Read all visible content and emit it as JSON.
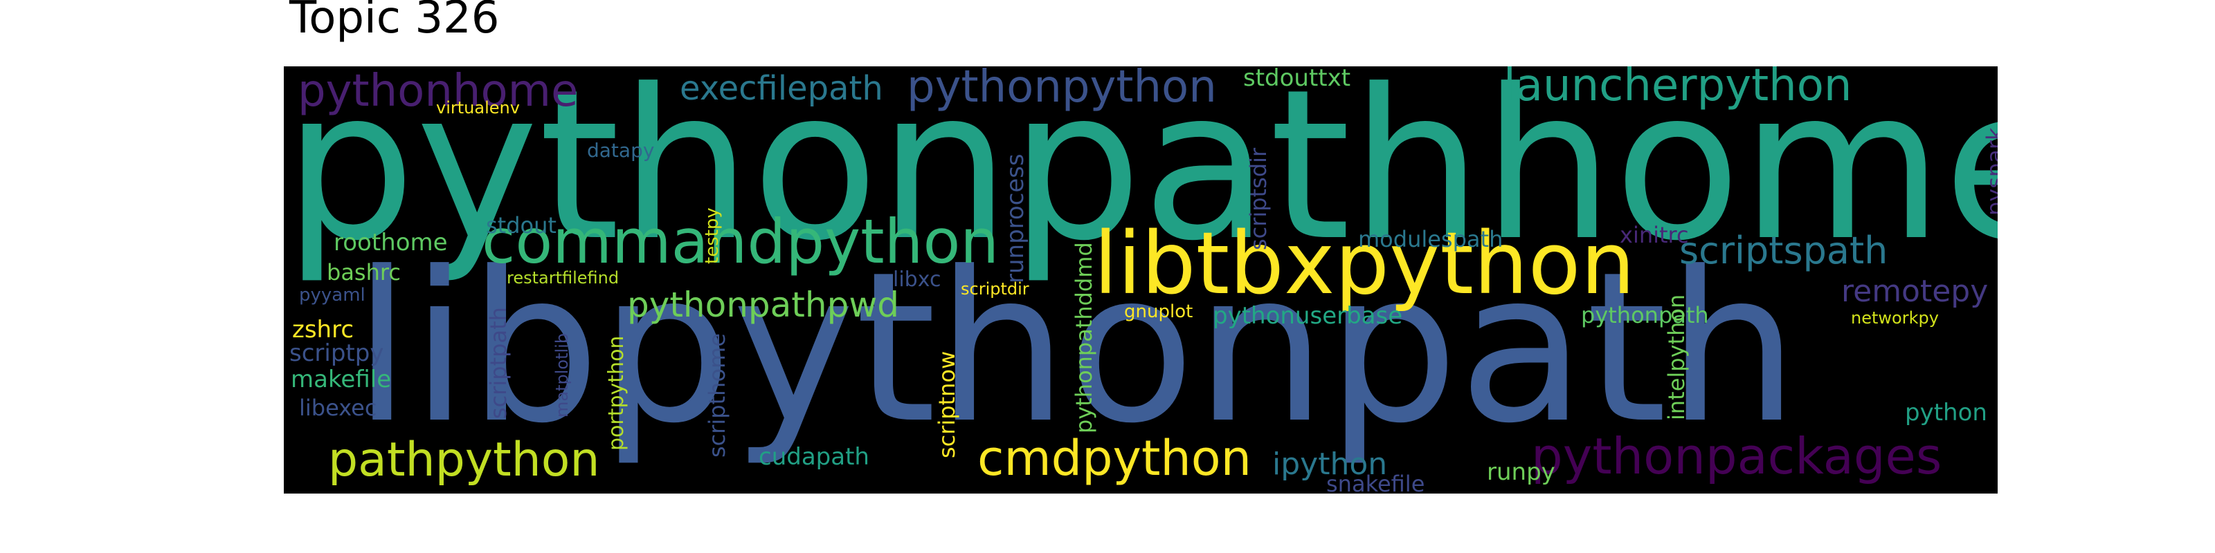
{
  "title": "Topic 326",
  "palette": {
    "background": "#000000",
    "teal": "#21a085",
    "blue": "#3e5e96",
    "yellow": "#fde725",
    "lime": "#b5de2b",
    "green": "#5ec962",
    "purple": "#440154",
    "indigo": "#3b528b",
    "cyan": "#26828e"
  },
  "words": [
    {
      "text": "pythonpathhome",
      "color": "#21a085"
    },
    {
      "text": "libpythonpath",
      "color": "#3e5e96"
    },
    {
      "text": "libtbxpython",
      "color": "#fde725"
    },
    {
      "text": "commandpython",
      "color": "#35b779"
    },
    {
      "text": "pythonpython",
      "color": "#3b528b"
    },
    {
      "text": "launcherpython",
      "color": "#21a085"
    },
    {
      "text": "execfilepath",
      "color": "#2a788e"
    },
    {
      "text": "pythonhome",
      "color": "#481f70"
    },
    {
      "text": "pythonpackages",
      "color": "#440154"
    },
    {
      "text": "cmdpython",
      "color": "#fde725"
    },
    {
      "text": "pathpython",
      "color": "#c2df23"
    },
    {
      "text": "scriptspath",
      "color": "#2a788e"
    },
    {
      "text": "pythonpathpwd",
      "color": "#6ece58"
    },
    {
      "text": "remotepy",
      "color": "#443983"
    },
    {
      "text": "stdouttxt",
      "color": "#5ec962"
    },
    {
      "text": "virtualenv",
      "color": "#fde725"
    },
    {
      "text": "datapy",
      "color": "#31688e"
    },
    {
      "text": "testpy",
      "color": "#d2e21b"
    },
    {
      "text": "runprocess",
      "color": "#3b528b"
    },
    {
      "text": "scriptsdir",
      "color": "#3e4989"
    },
    {
      "text": "pyspark",
      "color": "#472d7b"
    },
    {
      "text": "roothome",
      "color": "#5ec962"
    },
    {
      "text": "stdout",
      "color": "#2a788e"
    },
    {
      "text": "modulespath",
      "color": "#2a788e"
    },
    {
      "text": "xinitrc",
      "color": "#482878"
    },
    {
      "text": "bashrc",
      "color": "#6ece58"
    },
    {
      "text": "restartfilefind",
      "color": "#b5de2b"
    },
    {
      "text": "libxc",
      "color": "#3b528b"
    },
    {
      "text": "scriptdir",
      "color": "#fde725"
    },
    {
      "text": "pythonpathddmd",
      "color": "#6ece58"
    },
    {
      "text": "gnuplot",
      "color": "#fde725"
    },
    {
      "text": "pythonuserbase",
      "color": "#22a884"
    },
    {
      "text": "pythonpath",
      "color": "#5ec962"
    },
    {
      "text": "networkpy",
      "color": "#d2e21b"
    },
    {
      "text": "pyyaml",
      "color": "#3b528b"
    },
    {
      "text": "zshrc",
      "color": "#fde725"
    },
    {
      "text": "scriptpy",
      "color": "#3b528b"
    },
    {
      "text": "scriptpath",
      "color": "#3e4989"
    },
    {
      "text": "makefile",
      "color": "#35b779"
    },
    {
      "text": "matplotlib",
      "color": "#3e4989"
    },
    {
      "text": "portpython",
      "color": "#b5de2b"
    },
    {
      "text": "scripthome",
      "color": "#3b528b"
    },
    {
      "text": "scriptnow",
      "color": "#fde725"
    },
    {
      "text": "intelpython",
      "color": "#6ece58"
    },
    {
      "text": "libexec",
      "color": "#3b528b"
    },
    {
      "text": "python",
      "color": "#21a085"
    },
    {
      "text": "cudapath",
      "color": "#21a085"
    },
    {
      "text": "ipython",
      "color": "#2a788e"
    },
    {
      "text": "snakefile",
      "color": "#3e4989"
    },
    {
      "text": "runpy",
      "color": "#6ece58"
    }
  ]
}
